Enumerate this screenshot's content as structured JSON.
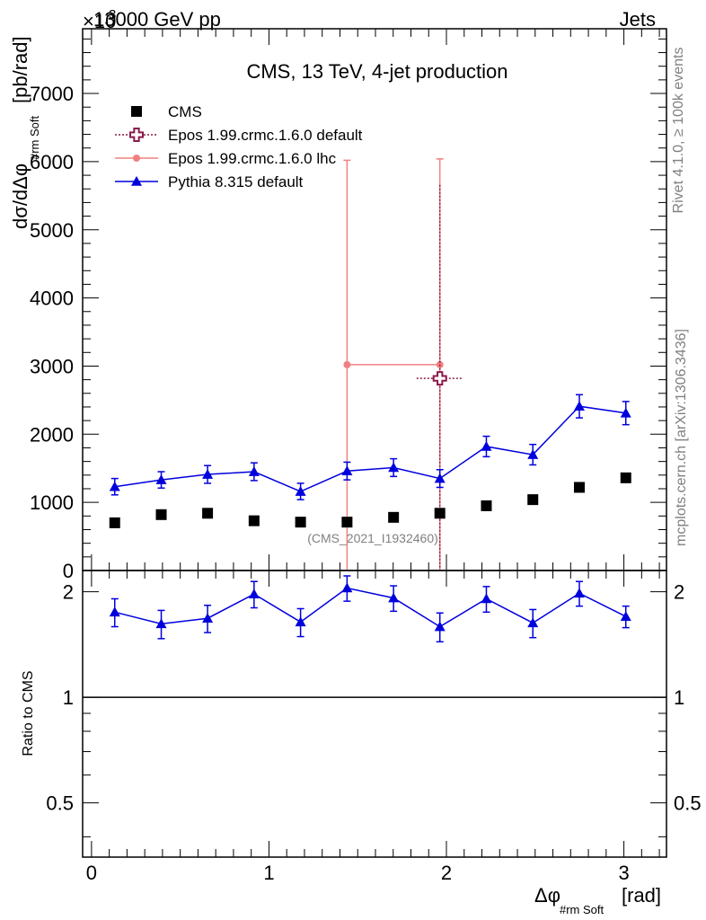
{
  "header": {
    "left": "13000 GeV pp",
    "right": "Jets",
    "exponent_prefix": "×10",
    "exponent": "3"
  },
  "side_labels": {
    "rivet": "Rivet 4.1.0, ≥ 100k events",
    "mcplots": "mcplots.cern.ch [arXiv:1306.3436]"
  },
  "colors": {
    "cms": "#000000",
    "epos_default": "#8b1a4a",
    "epos_lhc": "#f08080",
    "pythia": "#0000dd"
  },
  "chart_data": [
    {
      "type": "scatter",
      "title": "CMS, 13 TeV, 4-jet production",
      "ylabel": "dσ/dΔφ",
      "ylabel_sub": "#rm Soft",
      "ylabel_unit": "[pb/rad]",
      "watermark": "(CMS_2021_I1932460)",
      "xlim": [
        -0.05,
        3.24
      ],
      "ylim": [
        0,
        7950
      ],
      "y_scale_label": "×10^3",
      "yticks": [
        0,
        1000,
        2000,
        3000,
        4000,
        5000,
        6000,
        7000
      ],
      "ytick_labels": [
        "0",
        "1000",
        "2000",
        "3000",
        "4000",
        "5000",
        "6000",
        "7000"
      ],
      "legend_position": "top-left",
      "series": [
        {
          "name": "CMS",
          "style": "square-markers",
          "x": [
            0.131,
            0.393,
            0.654,
            0.916,
            1.178,
            1.44,
            1.702,
            1.963,
            2.225,
            2.487,
            2.749,
            3.011
          ],
          "y": [
            700,
            820,
            840,
            730,
            710,
            710,
            780,
            840,
            950,
            1040,
            1220,
            1360
          ],
          "err": [
            25,
            25,
            25,
            25,
            25,
            25,
            25,
            25,
            25,
            25,
            25,
            25
          ]
        },
        {
          "name": "Epos 1.99.crmc.1.6.0 default",
          "style": "open-cross-dotted",
          "x": [
            1.963
          ],
          "xerr": [
            0.131
          ],
          "y": [
            2820
          ],
          "err_low": [
            2820
          ],
          "err_high": [
            2840
          ]
        },
        {
          "name": "Epos 1.99.crmc.1.6.0 lhc",
          "style": "circle-line",
          "x": [
            1.44,
            1.963
          ],
          "y": [
            3020,
            3020
          ],
          "err_low": [
            3020,
            3020
          ],
          "err_high": [
            3000,
            3020
          ]
        },
        {
          "name": "Pythia 8.315 default",
          "style": "triangle-line",
          "x": [
            0.131,
            0.393,
            0.654,
            0.916,
            1.178,
            1.44,
            1.702,
            1.963,
            2.225,
            2.487,
            2.749,
            3.011
          ],
          "y": [
            1230,
            1330,
            1410,
            1450,
            1160,
            1460,
            1510,
            1350,
            1820,
            1700,
            2410,
            2310
          ],
          "err": [
            120,
            120,
            130,
            130,
            120,
            130,
            130,
            130,
            150,
            150,
            170,
            170
          ]
        }
      ]
    },
    {
      "type": "line",
      "ylabel": "Ratio to CMS",
      "xlabel": "Δφ",
      "xlabel_sub": "#rm Soft",
      "xlabel_unit": "[rad]",
      "xlim": [
        -0.05,
        3.24
      ],
      "ylim": [
        0.35,
        2.3
      ],
      "y_scale": "log",
      "yticks": [
        0.5,
        1,
        2
      ],
      "ytick_labels": [
        "0.5",
        "1",
        "2"
      ],
      "xticks": [
        0,
        1,
        2,
        3
      ],
      "xtick_labels": [
        "0",
        "1",
        "2",
        "3"
      ],
      "reference_line": 1,
      "series": [
        {
          "name": "Pythia 8.315 default",
          "x": [
            0.131,
            0.393,
            0.654,
            0.916,
            1.178,
            1.44,
            1.702,
            1.963,
            2.225,
            2.487,
            2.749,
            3.011
          ],
          "y": [
            1.75,
            1.62,
            1.68,
            1.97,
            1.64,
            2.05,
            1.92,
            1.59,
            1.91,
            1.63,
            1.98,
            1.7
          ],
          "err": [
            0.16,
            0.15,
            0.15,
            0.17,
            0.15,
            0.17,
            0.16,
            0.15,
            0.16,
            0.15,
            0.16,
            0.12
          ]
        }
      ]
    }
  ]
}
